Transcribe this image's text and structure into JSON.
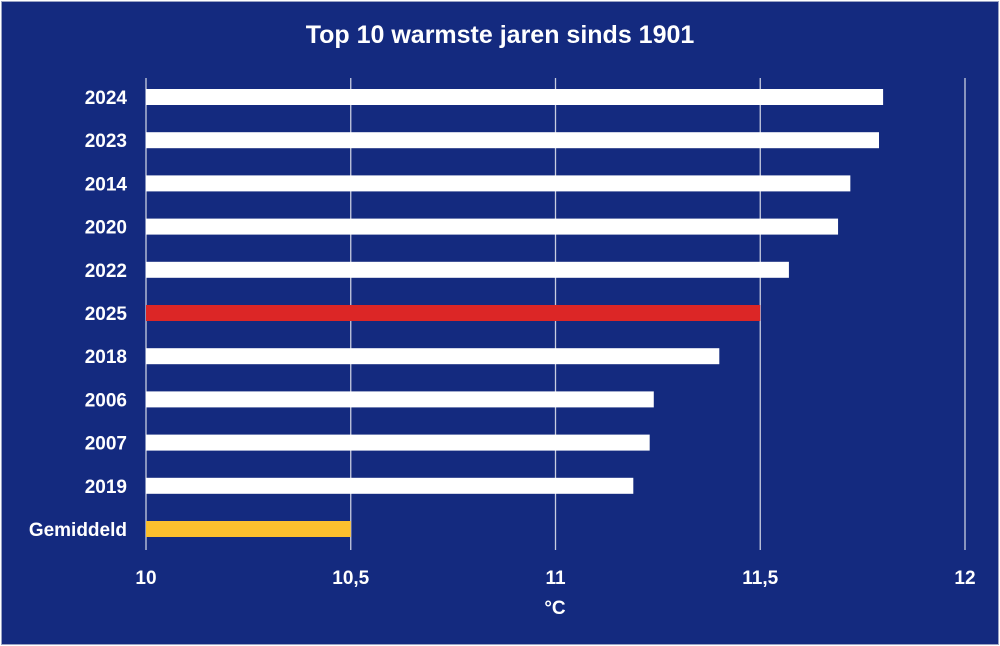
{
  "chart_data": {
    "type": "bar",
    "orientation": "horizontal",
    "title": "Top 10 warmste jaren sinds 1901",
    "xlabel": "°C",
    "ylabel": "",
    "categories": [
      "2024",
      "2023",
      "2014",
      "2020",
      "2022",
      "2025",
      "2018",
      "2006",
      "2007",
      "2019",
      "Gemiddeld"
    ],
    "values": [
      11.8,
      11.79,
      11.72,
      11.69,
      11.57,
      11.5,
      11.4,
      11.24,
      11.23,
      11.19,
      10.5
    ],
    "bar_colors": [
      "#ffffff",
      "#ffffff",
      "#ffffff",
      "#ffffff",
      "#ffffff",
      "#dc2626",
      "#ffffff",
      "#ffffff",
      "#ffffff",
      "#ffffff",
      "#fcc02e"
    ],
    "xlim": [
      10,
      12
    ],
    "xticks": [
      10,
      10.5,
      11,
      11.5,
      12
    ],
    "xtick_labels": [
      "10",
      "10,5",
      "11",
      "11,5",
      "12"
    ],
    "grid": "vertical",
    "background_color": "#142a7f"
  }
}
